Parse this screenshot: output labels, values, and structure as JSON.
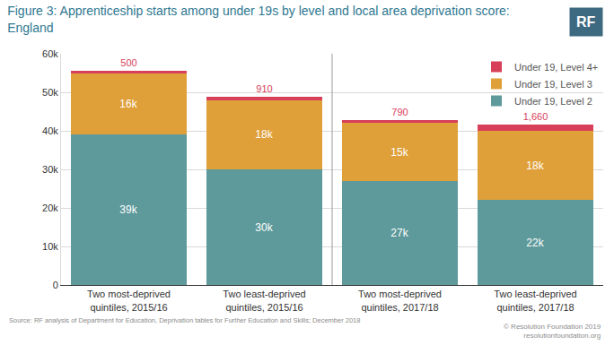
{
  "chart_data": {
    "type": "bar",
    "title": "Figure 3: Apprenticeship starts among under 19s by level and local area deprivation score:\nEngland",
    "categories": [
      "Two most-deprived\nquintiles, 2015/16",
      "Two least-deprived\nquintiles, 2015/16",
      "Two most-deprived\nquintiles, 2017/18",
      "Two least-deprived\nquintiles, 2017/18"
    ],
    "series": [
      {
        "name": "Under 19, Level 2",
        "color": "#5e9a9b",
        "values": [
          39000,
          30000,
          27000,
          22000
        ],
        "value_labels": [
          "39k",
          "30k",
          "27k",
          "22k"
        ]
      },
      {
        "name": "Under 19, Level 3",
        "color": "#dfa03a",
        "values": [
          16000,
          18000,
          15000,
          18000
        ],
        "value_labels": [
          "16k",
          "18k",
          "15k",
          "18k"
        ]
      },
      {
        "name": "Under 19, Level 4+",
        "color": "#d8405a",
        "values": [
          500,
          910,
          790,
          1660
        ],
        "value_labels": [
          "500",
          "910",
          "790",
          "1,660"
        ]
      }
    ],
    "stacked": true,
    "data_labels": true,
    "ylim": [
      0,
      60000
    ],
    "yticks": [
      0,
      {
        "value": 10000,
        "label": "10k"
      },
      {
        "value": 20000,
        "label": "20k"
      },
      {
        "value": 30000,
        "label": "30k"
      },
      {
        "value": 40000,
        "label": "40k"
      },
      {
        "value": 50000,
        "label": "50k"
      },
      {
        "value": 60000,
        "label": "60k"
      }
    ],
    "grid": true,
    "legend": "top right",
    "source": "Source: RF analysis of Department for Education, Deprivation tables for Further Education and Skills; December 2018",
    "credits": [
      "© Resolution Foundation 2019",
      "resolutionfoundation.org"
    ],
    "logo": "RF"
  }
}
